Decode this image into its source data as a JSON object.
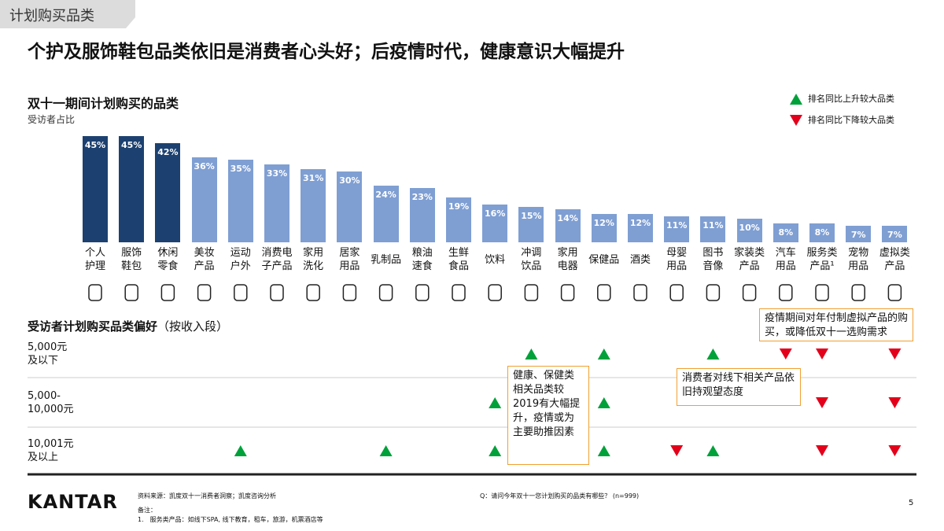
{
  "tab": "计划购买品类",
  "headline": "个护及服饰鞋包品类依旧是消费者心头好；后疫情时代，健康意识大幅提升",
  "legend": [
    {
      "name": "排名同比上升较大品类",
      "direction": "up",
      "color": "#00a13a"
    },
    {
      "name": "排名同比下降较大品类",
      "direction": "down",
      "color": "#e3001b"
    }
  ],
  "chart_data": {
    "type": "bar",
    "title": "双十一期间计划购买的品类",
    "subtitle": "受访者占比",
    "categories": [
      "个人\n护理",
      "服饰\n鞋包",
      "休闲\n零食",
      "美妆\n产品",
      "运动\n户外",
      "消费电\n子产品",
      "家用\n洗化",
      "居家\n用品",
      "乳制品",
      "粮油\n速食",
      "生鲜\n食品",
      "饮料",
      "冲调\n饮品",
      "家用\n电器",
      "保健品",
      "酒类",
      "母婴\n用品",
      "图书\n音像",
      "家装类\n产品",
      "汽车\n用品",
      "服务类\n产品¹",
      "宠物\n用品",
      "虚拟类\n产品"
    ],
    "values": [
      45,
      45,
      42,
      36,
      35,
      33,
      31,
      30,
      24,
      23,
      19,
      16,
      15,
      14,
      12,
      12,
      11,
      11,
      10,
      8,
      8,
      7,
      7
    ],
    "value_labels": [
      "45%",
      "45%",
      "42%",
      "36%",
      "35%",
      "33%",
      "31%",
      "30%",
      "24%",
      "23%",
      "19%",
      "16%",
      "15%",
      "14%",
      "12%",
      "12%",
      "11%",
      "11%",
      "10%",
      "8%",
      "8%",
      "7%",
      "7%"
    ],
    "colors": [
      "#1c4170",
      "#1c4170",
      "#1c4170",
      "#7f9fd3",
      "#7f9fd3",
      "#7f9fd3",
      "#7f9fd3",
      "#7f9fd3",
      "#7f9fd3",
      "#7f9fd3",
      "#7f9fd3",
      "#7f9fd3",
      "#7f9fd3",
      "#7f9fd3",
      "#7f9fd3",
      "#7f9fd3",
      "#7f9fd3",
      "#7f9fd3",
      "#7f9fd3",
      "#7f9fd3",
      "#7f9fd3",
      "#7f9fd3",
      "#7f9fd3"
    ]
  },
  "matrix": {
    "title": "受访者计划购买品类偏好",
    "title_note": "（按收入段）",
    "rows": [
      {
        "label": "5,000元\n及以下",
        "marks": [
          null,
          null,
          null,
          null,
          null,
          null,
          null,
          null,
          null,
          null,
          null,
          null,
          "up",
          null,
          "up",
          null,
          null,
          "up",
          null,
          "down",
          "down",
          null,
          "down"
        ]
      },
      {
        "label": "5,000-\n10,000元",
        "marks": [
          null,
          null,
          null,
          null,
          null,
          null,
          null,
          null,
          null,
          null,
          null,
          "up",
          null,
          null,
          "up",
          null,
          null,
          null,
          null,
          null,
          "down",
          null,
          "down"
        ]
      },
      {
        "label": "10,001元\n及以上",
        "marks": [
          null,
          null,
          null,
          null,
          "up",
          null,
          null,
          null,
          "up",
          null,
          null,
          "up",
          null,
          null,
          "up",
          null,
          "down",
          "up",
          null,
          null,
          "down",
          null,
          "down"
        ]
      }
    ]
  },
  "callouts": [
    "疫情期间对年付制虚拟产品的购买，或降低双十一选购需求",
    "健康、保健类相关品类较2019有大幅提升，疫情或为主要助推因素",
    "消费者对线下相关产品依旧持观望态度"
  ],
  "footer": {
    "brand": "KANTAR",
    "source": "资料来源：凯度双十一消费者洞察；凯度咨询分析",
    "note_title": "备注：",
    "note": "1.　服务类产品：如线下SPA, 线下教育，租车，旅游，机票酒店等",
    "question": "Q：请问今年双十一您计划购买的品类有哪些？ (n=999)",
    "page": "5"
  }
}
